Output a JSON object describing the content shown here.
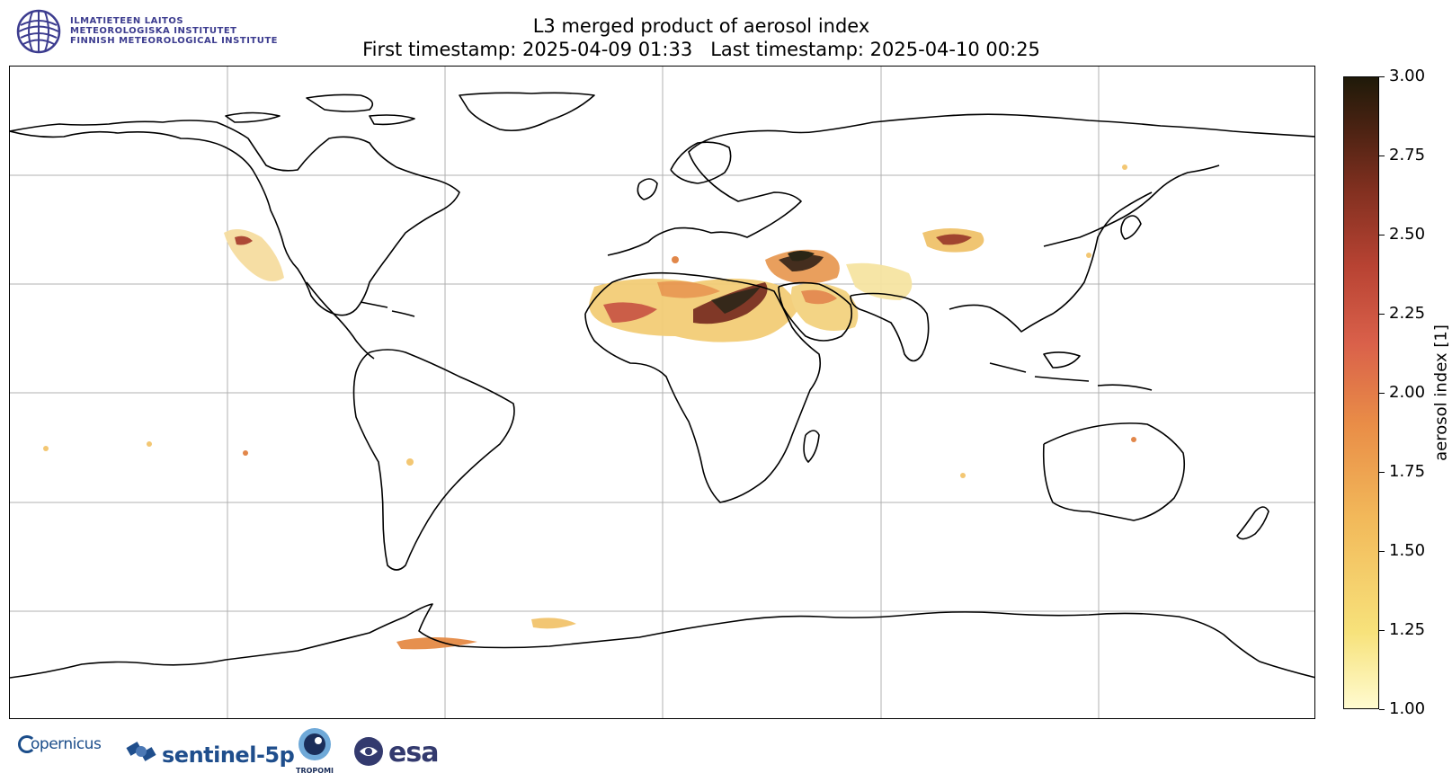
{
  "header": {
    "institute_lines": [
      "ILMATIETEEN LAITOS",
      "METEOROLOGISKA INSTITUTET",
      "FINNISH METEOROLOGICAL INSTITUTE"
    ],
    "title_line1": "L3 merged product of aerosol index",
    "title_line2": "First timestamp: 2025-04-09 01:33   Last timestamp: 2025-04-10 00:25"
  },
  "colorbar": {
    "label": "aerosol index [1]",
    "min": 1.0,
    "max": 3.0,
    "ticks": [
      "1.00",
      "1.25",
      "1.50",
      "1.75",
      "2.00",
      "2.25",
      "2.50",
      "2.75",
      "3.00"
    ],
    "colors": [
      "#fffbd0",
      "#f7e27b",
      "#f2b95a",
      "#e98d47",
      "#d9604a",
      "#b84333",
      "#823020",
      "#4a2212",
      "#1f1a09"
    ]
  },
  "map": {
    "projection": "equirectangular",
    "grid": true,
    "coastline_color": "#000000",
    "gridline_color": "#b0b0b0",
    "aerosol_regions": [
      {
        "name": "Sahara-West Africa",
        "value": 2.4
      },
      {
        "name": "Central Sahara / Chad",
        "value": 2.9
      },
      {
        "name": "Egypt / Red Sea",
        "value": 2.8
      },
      {
        "name": "Iraq / Syria",
        "value": 3.0
      },
      {
        "name": "Arabian Peninsula",
        "value": 1.8
      },
      {
        "name": "Iran / Pakistan",
        "value": 1.6
      },
      {
        "name": "Taklamakan / Gobi",
        "value": 2.3
      },
      {
        "name": "Mexico / SW USA",
        "value": 1.9
      },
      {
        "name": "Antarctica coast",
        "value": 1.5
      }
    ]
  },
  "footer": {
    "copernicus": "opernicus",
    "sentinel": "sentinel-5p",
    "tropomi": "TROPOMI",
    "esa": "esa"
  }
}
